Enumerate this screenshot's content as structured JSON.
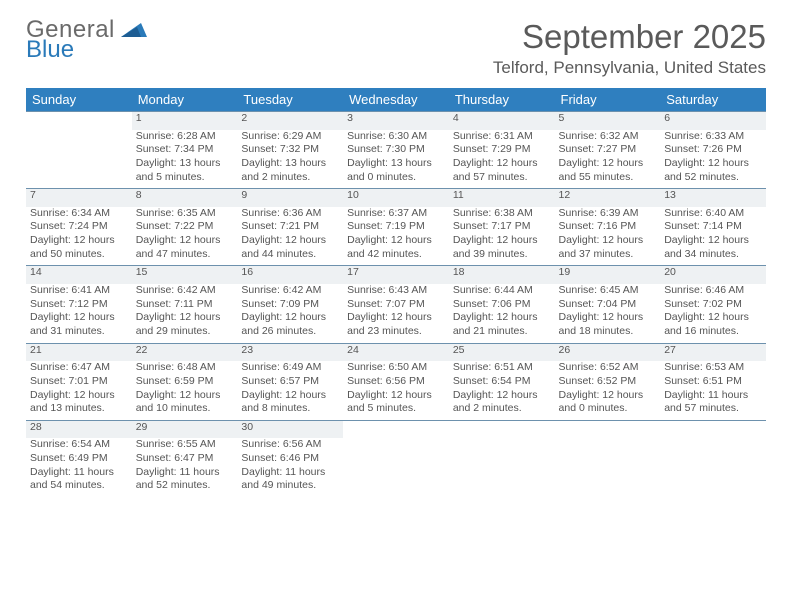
{
  "brand": {
    "word1": "General",
    "word2": "Blue",
    "accent_color": "#2a7ab9",
    "text_color": "#6a6a6a"
  },
  "title": "September 2025",
  "location": "Telford, Pennsylvania, United States",
  "header_bg": "#2f7fbf",
  "header_fg": "#ffffff",
  "daynum_bg": "#eef1f3",
  "border_color": "#6d91ad",
  "text_color": "#555555",
  "weekdays": [
    "Sunday",
    "Monday",
    "Tuesday",
    "Wednesday",
    "Thursday",
    "Friday",
    "Saturday"
  ],
  "weeks": [
    [
      null,
      {
        "n": "1",
        "sunrise": "Sunrise: 6:28 AM",
        "sunset": "Sunset: 7:34 PM",
        "daylight": "Daylight: 13 hours and 5 minutes."
      },
      {
        "n": "2",
        "sunrise": "Sunrise: 6:29 AM",
        "sunset": "Sunset: 7:32 PM",
        "daylight": "Daylight: 13 hours and 2 minutes."
      },
      {
        "n": "3",
        "sunrise": "Sunrise: 6:30 AM",
        "sunset": "Sunset: 7:30 PM",
        "daylight": "Daylight: 13 hours and 0 minutes."
      },
      {
        "n": "4",
        "sunrise": "Sunrise: 6:31 AM",
        "sunset": "Sunset: 7:29 PM",
        "daylight": "Daylight: 12 hours and 57 minutes."
      },
      {
        "n": "5",
        "sunrise": "Sunrise: 6:32 AM",
        "sunset": "Sunset: 7:27 PM",
        "daylight": "Daylight: 12 hours and 55 minutes."
      },
      {
        "n": "6",
        "sunrise": "Sunrise: 6:33 AM",
        "sunset": "Sunset: 7:26 PM",
        "daylight": "Daylight: 12 hours and 52 minutes."
      }
    ],
    [
      {
        "n": "7",
        "sunrise": "Sunrise: 6:34 AM",
        "sunset": "Sunset: 7:24 PM",
        "daylight": "Daylight: 12 hours and 50 minutes."
      },
      {
        "n": "8",
        "sunrise": "Sunrise: 6:35 AM",
        "sunset": "Sunset: 7:22 PM",
        "daylight": "Daylight: 12 hours and 47 minutes."
      },
      {
        "n": "9",
        "sunrise": "Sunrise: 6:36 AM",
        "sunset": "Sunset: 7:21 PM",
        "daylight": "Daylight: 12 hours and 44 minutes."
      },
      {
        "n": "10",
        "sunrise": "Sunrise: 6:37 AM",
        "sunset": "Sunset: 7:19 PM",
        "daylight": "Daylight: 12 hours and 42 minutes."
      },
      {
        "n": "11",
        "sunrise": "Sunrise: 6:38 AM",
        "sunset": "Sunset: 7:17 PM",
        "daylight": "Daylight: 12 hours and 39 minutes."
      },
      {
        "n": "12",
        "sunrise": "Sunrise: 6:39 AM",
        "sunset": "Sunset: 7:16 PM",
        "daylight": "Daylight: 12 hours and 37 minutes."
      },
      {
        "n": "13",
        "sunrise": "Sunrise: 6:40 AM",
        "sunset": "Sunset: 7:14 PM",
        "daylight": "Daylight: 12 hours and 34 minutes."
      }
    ],
    [
      {
        "n": "14",
        "sunrise": "Sunrise: 6:41 AM",
        "sunset": "Sunset: 7:12 PM",
        "daylight": "Daylight: 12 hours and 31 minutes."
      },
      {
        "n": "15",
        "sunrise": "Sunrise: 6:42 AM",
        "sunset": "Sunset: 7:11 PM",
        "daylight": "Daylight: 12 hours and 29 minutes."
      },
      {
        "n": "16",
        "sunrise": "Sunrise: 6:42 AM",
        "sunset": "Sunset: 7:09 PM",
        "daylight": "Daylight: 12 hours and 26 minutes."
      },
      {
        "n": "17",
        "sunrise": "Sunrise: 6:43 AM",
        "sunset": "Sunset: 7:07 PM",
        "daylight": "Daylight: 12 hours and 23 minutes."
      },
      {
        "n": "18",
        "sunrise": "Sunrise: 6:44 AM",
        "sunset": "Sunset: 7:06 PM",
        "daylight": "Daylight: 12 hours and 21 minutes."
      },
      {
        "n": "19",
        "sunrise": "Sunrise: 6:45 AM",
        "sunset": "Sunset: 7:04 PM",
        "daylight": "Daylight: 12 hours and 18 minutes."
      },
      {
        "n": "20",
        "sunrise": "Sunrise: 6:46 AM",
        "sunset": "Sunset: 7:02 PM",
        "daylight": "Daylight: 12 hours and 16 minutes."
      }
    ],
    [
      {
        "n": "21",
        "sunrise": "Sunrise: 6:47 AM",
        "sunset": "Sunset: 7:01 PM",
        "daylight": "Daylight: 12 hours and 13 minutes."
      },
      {
        "n": "22",
        "sunrise": "Sunrise: 6:48 AM",
        "sunset": "Sunset: 6:59 PM",
        "daylight": "Daylight: 12 hours and 10 minutes."
      },
      {
        "n": "23",
        "sunrise": "Sunrise: 6:49 AM",
        "sunset": "Sunset: 6:57 PM",
        "daylight": "Daylight: 12 hours and 8 minutes."
      },
      {
        "n": "24",
        "sunrise": "Sunrise: 6:50 AM",
        "sunset": "Sunset: 6:56 PM",
        "daylight": "Daylight: 12 hours and 5 minutes."
      },
      {
        "n": "25",
        "sunrise": "Sunrise: 6:51 AM",
        "sunset": "Sunset: 6:54 PM",
        "daylight": "Daylight: 12 hours and 2 minutes."
      },
      {
        "n": "26",
        "sunrise": "Sunrise: 6:52 AM",
        "sunset": "Sunset: 6:52 PM",
        "daylight": "Daylight: 12 hours and 0 minutes."
      },
      {
        "n": "27",
        "sunrise": "Sunrise: 6:53 AM",
        "sunset": "Sunset: 6:51 PM",
        "daylight": "Daylight: 11 hours and 57 minutes."
      }
    ],
    [
      {
        "n": "28",
        "sunrise": "Sunrise: 6:54 AM",
        "sunset": "Sunset: 6:49 PM",
        "daylight": "Daylight: 11 hours and 54 minutes."
      },
      {
        "n": "29",
        "sunrise": "Sunrise: 6:55 AM",
        "sunset": "Sunset: 6:47 PM",
        "daylight": "Daylight: 11 hours and 52 minutes."
      },
      {
        "n": "30",
        "sunrise": "Sunrise: 6:56 AM",
        "sunset": "Sunset: 6:46 PM",
        "daylight": "Daylight: 11 hours and 49 minutes."
      },
      null,
      null,
      null,
      null
    ]
  ]
}
